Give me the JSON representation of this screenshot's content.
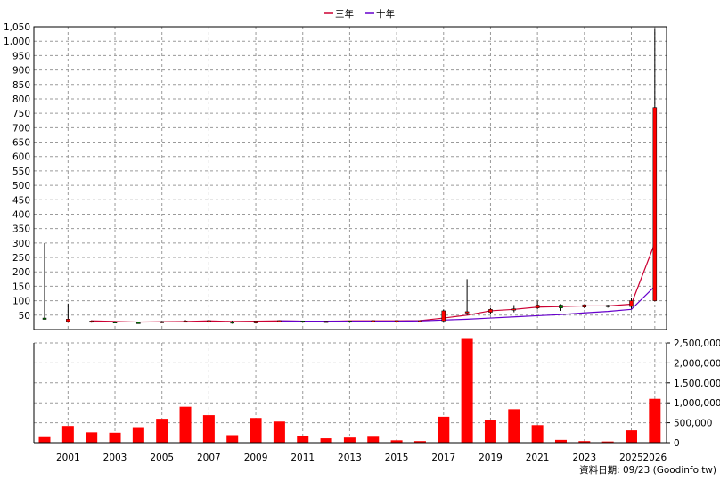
{
  "colors": {
    "three_year_line": "#cc0033",
    "ten_year_line": "#6600cc",
    "volume_bar": "#ff0000",
    "candle_up": "#ff0000",
    "candle_down": "#008000",
    "grid": "#9a9a9a"
  },
  "legend": {
    "three_year": "三年",
    "ten_year": "十年"
  },
  "footer": {
    "date_text": "資料日期: 09/23 (Goodinfo.tw)"
  },
  "chart_data": {
    "type": "candlestick+line+bar",
    "grid": true,
    "legend_position": "top-center",
    "x_ticks": [
      "2001",
      "2003",
      "2005",
      "2007",
      "2009",
      "2011",
      "2013",
      "2015",
      "2017",
      "2019",
      "2021",
      "2023",
      "2025",
      "2026"
    ],
    "years": [
      2000,
      2001,
      2002,
      2003,
      2004,
      2005,
      2006,
      2007,
      2008,
      2009,
      2010,
      2011,
      2012,
      2013,
      2014,
      2015,
      2016,
      2017,
      2018,
      2019,
      2020,
      2021,
      2022,
      2023,
      2024,
      2025,
      2026
    ],
    "price_axis": {
      "ylim": [
        0,
        1050
      ],
      "ticks": [
        50,
        100,
        150,
        200,
        250,
        300,
        350,
        400,
        450,
        500,
        550,
        600,
        650,
        700,
        750,
        800,
        850,
        900,
        950,
        1000,
        1050
      ],
      "tick_labels": [
        "50",
        "100",
        "150",
        "200",
        "250",
        "300",
        "350",
        "400",
        "450",
        "500",
        "550",
        "600",
        "650",
        "700",
        "750",
        "800",
        "850",
        "900",
        "950",
        "1,000",
        "1,050"
      ]
    },
    "candles": [
      {
        "year": 2000,
        "open": 40,
        "high": 300,
        "low": 35,
        "close": 38
      },
      {
        "year": 2001,
        "open": 28,
        "high": 90,
        "low": 28,
        "close": 36
      },
      {
        "year": 2002,
        "open": 28,
        "high": 32,
        "low": 24,
        "close": 30
      },
      {
        "year": 2003,
        "open": 27,
        "high": 28,
        "low": 25,
        "close": 26
      },
      {
        "year": 2004,
        "open": 25,
        "high": 26,
        "low": 23,
        "close": 24
      },
      {
        "year": 2005,
        "open": 26,
        "high": 29,
        "low": 25,
        "close": 28
      },
      {
        "year": 2006,
        "open": 28,
        "high": 33,
        "low": 27,
        "close": 30
      },
      {
        "year": 2007,
        "open": 30,
        "high": 34,
        "low": 29,
        "close": 31
      },
      {
        "year": 2008,
        "open": 27,
        "high": 31,
        "low": 20,
        "close": 22
      },
      {
        "year": 2009,
        "open": 23,
        "high": 31,
        "low": 21,
        "close": 30
      },
      {
        "year": 2010,
        "open": 30,
        "high": 32,
        "low": 29,
        "close": 31
      },
      {
        "year": 2011,
        "open": 30,
        "high": 31,
        "low": 27,
        "close": 28
      },
      {
        "year": 2012,
        "open": 29,
        "high": 30,
        "low": 28,
        "close": 29
      },
      {
        "year": 2013,
        "open": 30,
        "high": 31,
        "low": 28,
        "close": 29
      },
      {
        "year": 2014,
        "open": 30,
        "high": 32,
        "low": 29,
        "close": 31
      },
      {
        "year": 2015,
        "open": 30,
        "high": 32,
        "low": 29,
        "close": 31
      },
      {
        "year": 2016,
        "open": 30,
        "high": 32,
        "low": 29,
        "close": 31
      },
      {
        "year": 2017,
        "open": 30,
        "high": 70,
        "low": 28,
        "close": 65
      },
      {
        "year": 2018,
        "open": 60,
        "high": 175,
        "low": 50,
        "close": 62
      },
      {
        "year": 2019,
        "open": 60,
        "high": 75,
        "low": 55,
        "close": 70
      },
      {
        "year": 2020,
        "open": 70,
        "high": 85,
        "low": 60,
        "close": 72
      },
      {
        "year": 2021,
        "open": 75,
        "high": 100,
        "low": 70,
        "close": 85
      },
      {
        "year": 2022,
        "open": 85,
        "high": 88,
        "low": 65,
        "close": 75
      },
      {
        "year": 2023,
        "open": 78,
        "high": 88,
        "low": 74,
        "close": 86
      },
      {
        "year": 2024,
        "open": 82,
        "high": 86,
        "low": 76,
        "close": 84
      },
      {
        "year": 2025,
        "open": 80,
        "high": 110,
        "low": 72,
        "close": 100
      },
      {
        "year": 2026,
        "open": 100,
        "high": 1045,
        "low": 98,
        "close": 770
      }
    ],
    "series": [
      {
        "name": "三年",
        "color": "#cc0033",
        "points": [
          [
            2002,
            30
          ],
          [
            2003,
            28
          ],
          [
            2004,
            26
          ],
          [
            2005,
            27
          ],
          [
            2006,
            28
          ],
          [
            2007,
            30
          ],
          [
            2008,
            28
          ],
          [
            2009,
            29
          ],
          [
            2010,
            30
          ],
          [
            2011,
            29
          ],
          [
            2012,
            29
          ],
          [
            2013,
            30
          ],
          [
            2014,
            30
          ],
          [
            2015,
            30
          ],
          [
            2016,
            31
          ],
          [
            2017,
            40
          ],
          [
            2018,
            50
          ],
          [
            2019,
            65
          ],
          [
            2020,
            70
          ],
          [
            2021,
            78
          ],
          [
            2022,
            80
          ],
          [
            2023,
            82
          ],
          [
            2024,
            82
          ],
          [
            2025,
            88
          ],
          [
            2026,
            300
          ]
        ]
      },
      {
        "name": "十年",
        "color": "#6600cc",
        "points": [
          [
            2010,
            30
          ],
          [
            2011,
            29
          ],
          [
            2012,
            29
          ],
          [
            2013,
            29
          ],
          [
            2014,
            29
          ],
          [
            2015,
            29
          ],
          [
            2016,
            30
          ],
          [
            2017,
            33
          ],
          [
            2018,
            36
          ],
          [
            2019,
            40
          ],
          [
            2020,
            44
          ],
          [
            2021,
            48
          ],
          [
            2022,
            52
          ],
          [
            2023,
            58
          ],
          [
            2024,
            63
          ],
          [
            2025,
            70
          ],
          [
            2026,
            150
          ]
        ]
      }
    ],
    "volume_axis": {
      "ylim": [
        0,
        2500000
      ],
      "ticks": [
        0,
        500000,
        1000000,
        1500000,
        2000000,
        2500000
      ],
      "tick_labels": [
        "0",
        "500,000",
        "1,000,000",
        "1,500,000",
        "2,000,000",
        "2,500,000"
      ]
    },
    "volume": [
      {
        "year": 2000,
        "value": 140000
      },
      {
        "year": 2001,
        "value": 420000
      },
      {
        "year": 2002,
        "value": 260000
      },
      {
        "year": 2003,
        "value": 250000
      },
      {
        "year": 2004,
        "value": 390000
      },
      {
        "year": 2005,
        "value": 600000
      },
      {
        "year": 2006,
        "value": 900000
      },
      {
        "year": 2007,
        "value": 690000
      },
      {
        "year": 2008,
        "value": 190000
      },
      {
        "year": 2009,
        "value": 620000
      },
      {
        "year": 2010,
        "value": 530000
      },
      {
        "year": 2011,
        "value": 170000
      },
      {
        "year": 2012,
        "value": 110000
      },
      {
        "year": 2013,
        "value": 130000
      },
      {
        "year": 2014,
        "value": 150000
      },
      {
        "year": 2015,
        "value": 60000
      },
      {
        "year": 2016,
        "value": 40000
      },
      {
        "year": 2017,
        "value": 650000
      },
      {
        "year": 2018,
        "value": 2650000
      },
      {
        "year": 2019,
        "value": 580000
      },
      {
        "year": 2020,
        "value": 840000
      },
      {
        "year": 2021,
        "value": 440000
      },
      {
        "year": 2022,
        "value": 70000
      },
      {
        "year": 2023,
        "value": 40000
      },
      {
        "year": 2024,
        "value": 30000
      },
      {
        "year": 2025,
        "value": 310000
      },
      {
        "year": 2026,
        "value": 1100000
      }
    ]
  }
}
